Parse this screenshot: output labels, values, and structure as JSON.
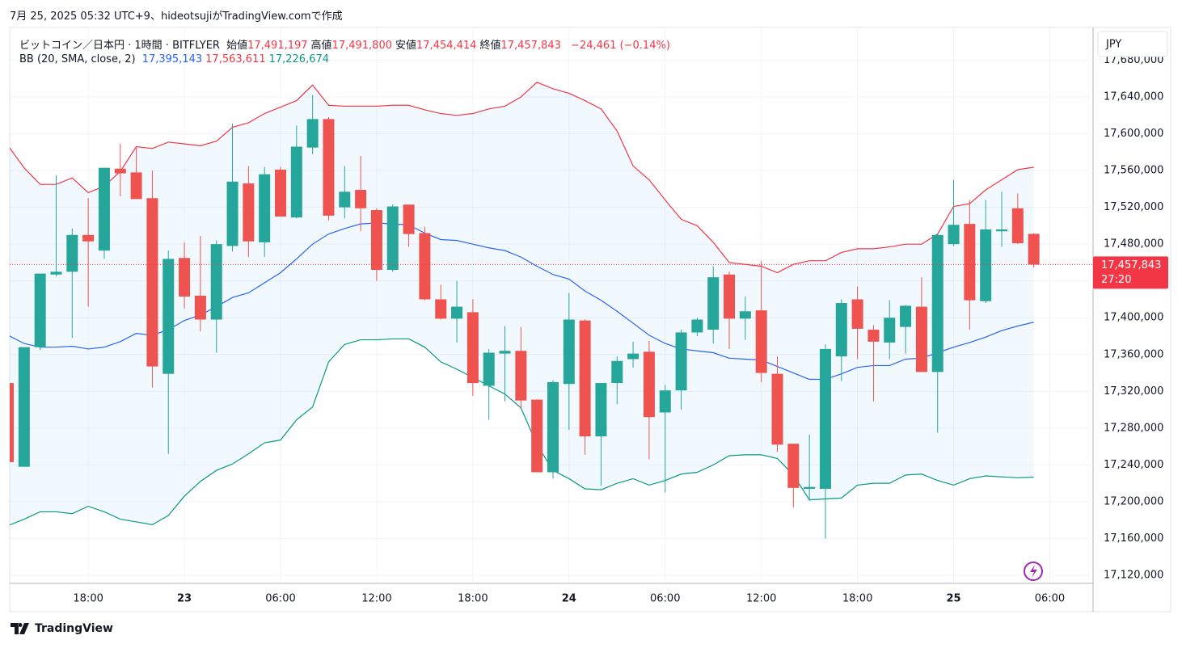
{
  "header": "7月 25, 2025 05:32 UTC+9、hideotsujiがTradingView.comで作成",
  "legend": {
    "symbol": "ビットコイン／日本円 · 1時間 · BITFLYER",
    "items": [
      {
        "label": "始値",
        "value": "17,491,197"
      },
      {
        "label": "高値",
        "value": "17,491,800"
      },
      {
        "label": "安値",
        "value": "17,454,414"
      },
      {
        "label": "終値",
        "value": "17,457,843"
      }
    ],
    "change": "−24,461 (−0.14%)"
  },
  "footer": "TradingView",
  "chart_data": {
    "type": "candlestick",
    "currency": "JPY",
    "last_price_label": "17,457,843",
    "countdown": "27:20",
    "xlim": [
      0.1,
      67.7
    ],
    "xticks": [
      {
        "value": 5,
        "label": "18:00"
      },
      {
        "value": 11,
        "label": "23"
      },
      {
        "value": 17,
        "label": "06:00"
      },
      {
        "value": 23,
        "label": "12:00"
      },
      {
        "value": 29,
        "label": "18:00"
      },
      {
        "value": 35,
        "label": "24"
      },
      {
        "value": 41,
        "label": "06:00"
      },
      {
        "value": 47,
        "label": "12:00"
      },
      {
        "value": 53,
        "label": "18:00"
      },
      {
        "value": 59,
        "label": "25"
      },
      {
        "value": 65,
        "label": "06:00"
      }
    ],
    "ylim": [
      17111200,
      17714700
    ],
    "yticks": [
      {
        "value": 17120000,
        "label": "17,120,000"
      },
      {
        "value": 17160000,
        "label": "17,160,000"
      },
      {
        "value": 17200000,
        "label": "17,200,000"
      },
      {
        "value": 17240000,
        "label": "17,240,000"
      },
      {
        "value": 17280000,
        "label": "17,280,000"
      },
      {
        "value": 17320000,
        "label": "17,320,000"
      },
      {
        "value": 17360000,
        "label": "17,360,000"
      },
      {
        "value": 17400000,
        "label": "17,400,000"
      },
      {
        "value": 17440000,
        "label": "17,440,000"
      },
      {
        "value": 17480000,
        "label": "17,480,000"
      },
      {
        "value": 17520000,
        "label": "17,520,000"
      },
      {
        "value": 17560000,
        "label": "17,560,000"
      },
      {
        "value": 17600000,
        "label": "17,600,000"
      },
      {
        "value": 17640000,
        "label": "17,640,000"
      },
      {
        "value": 17680000,
        "label": "17,680,000"
      }
    ],
    "grid": true,
    "up_color": "#26a69a",
    "down_color": "#ef5350",
    "open": [
      17329000,
      17238000,
      17368000,
      17447000,
      17450000,
      17490000,
      17473000,
      17562000,
      17558000,
      17530000,
      17339000,
      17465000,
      17424000,
      17398000,
      17478000,
      17546000,
      17482000,
      17561000,
      17509000,
      17585000,
      17616000,
      17520000,
      17539000,
      17517000,
      17452000,
      17523000,
      17492000,
      17420000,
      17399000,
      17406000,
      17326000,
      17361000,
      17364000,
      17311000,
      17232000,
      17328000,
      17397000,
      17271000,
      17329000,
      17355000,
      17363000,
      17297000,
      17321000,
      17384000,
      17387000,
      17447000,
      17399000,
      17408000,
      17339000,
      17263000,
      17214000,
      17214000,
      17358000,
      17420000,
      17387000,
      17373000,
      17390000,
      17412000,
      17341000,
      17480000,
      17502000,
      17418000,
      17494000,
      17519000,
      17491197
    ],
    "high": [
      17329000,
      17368000,
      17448000,
      17555000,
      17497000,
      17530000,
      17563000,
      17589000,
      17585000,
      17560000,
      17473000,
      17482000,
      17489000,
      17484000,
      17611000,
      17565000,
      17564000,
      17564000,
      17609000,
      17642000,
      17618000,
      17565000,
      17576000,
      17519000,
      17523000,
      17523000,
      17499000,
      17436000,
      17440000,
      17420000,
      17366000,
      17391000,
      17390000,
      17311000,
      17332000,
      17427000,
      17398000,
      17329000,
      17358000,
      17374000,
      17375000,
      17327000,
      17387000,
      17400000,
      17456000,
      17450000,
      17423000,
      17462000,
      17358000,
      17263000,
      17273000,
      17371000,
      17420000,
      17434000,
      17392000,
      17419000,
      17414000,
      17444000,
      17492000,
      17550000,
      17528000,
      17528000,
      17537000,
      17535000,
      17491800
    ],
    "low": [
      17243000,
      17238000,
      17365000,
      17445000,
      17378000,
      17412000,
      17464000,
      17532000,
      17529000,
      17324000,
      17252000,
      17410000,
      17385000,
      17362000,
      17472000,
      17466000,
      17466000,
      17510000,
      17508000,
      17578000,
      17506000,
      17508000,
      17494000,
      17440000,
      17450000,
      17477000,
      17419000,
      17398000,
      17373000,
      17315000,
      17289000,
      17309000,
      17301000,
      17232000,
      17225000,
      17278000,
      17251000,
      17217000,
      17306000,
      17346000,
      17246000,
      17210000,
      17300000,
      17380000,
      17372000,
      17366000,
      17376000,
      17330000,
      17254000,
      17194000,
      17201000,
      17160000,
      17331000,
      17355000,
      17309000,
      17355000,
      17361000,
      17341000,
      17275000,
      17478000,
      17387000,
      17416000,
      17477000,
      17480000,
      17454414
    ],
    "close": [
      17243000,
      17368000,
      17448000,
      17450000,
      17490000,
      17483000,
      17563000,
      17557000,
      17529000,
      17347000,
      17464000,
      17423000,
      17398000,
      17480000,
      17548000,
      17483000,
      17556000,
      17510000,
      17586000,
      17616000,
      17511000,
      17537000,
      17519000,
      17452000,
      17521000,
      17491000,
      17420000,
      17399000,
      17412000,
      17329000,
      17362000,
      17364000,
      17310000,
      17232000,
      17330000,
      17398000,
      17271000,
      17329000,
      17353000,
      17361000,
      17292000,
      17321000,
      17384000,
      17398000,
      17444000,
      17399000,
      17407000,
      17340000,
      17262000,
      17215000,
      17216000,
      17366000,
      17416000,
      17388000,
      17374000,
      17400000,
      17413000,
      17341000,
      17490000,
      17501000,
      17419000,
      17496000,
      17496000,
      17481000,
      17457843
    ],
    "bb": {
      "name": "BB (20, SMA, close, 2)",
      "fill": "rgba(33,150,243,0.06)",
      "lines": [
        {
          "color": "#2962ff",
          "legend_label": "17,395,143",
          "values": [
            17381000,
            17372000,
            17368000,
            17368000,
            17369000,
            17366000,
            17368000,
            17374000,
            17383000,
            17381000,
            17387000,
            17397000,
            17403000,
            17412000,
            17422000,
            17427000,
            17438000,
            17449000,
            17464000,
            17480000,
            17491000,
            17497000,
            17502000,
            17503000,
            17502000,
            17501000,
            17492000,
            17485000,
            17484000,
            17480000,
            17476000,
            17473000,
            17466000,
            17456000,
            17447000,
            17442000,
            17429000,
            17419000,
            17407000,
            17394000,
            17381000,
            17372000,
            17366000,
            17364000,
            17362000,
            17356000,
            17355000,
            17354000,
            17347000,
            17340000,
            17333000,
            17333000,
            17339000,
            17346000,
            17348000,
            17348000,
            17355000,
            17356000,
            17362000,
            17368000,
            17373000,
            17379000,
            17386000,
            17391000,
            17395143
          ]
        },
        {
          "color": "#f23645",
          "legend_label": "17,563,611",
          "values": [
            17587000,
            17563000,
            17545000,
            17545000,
            17552000,
            17536000,
            17543000,
            17559000,
            17586000,
            17584000,
            17591000,
            17589000,
            17587000,
            17592000,
            17607000,
            17612000,
            17622000,
            17629000,
            17636000,
            17653000,
            17631000,
            17630000,
            17630000,
            17630000,
            17631000,
            17631000,
            17626000,
            17622000,
            17620000,
            17622000,
            17627000,
            17630000,
            17640000,
            17656000,
            17649000,
            17644000,
            17636000,
            17627000,
            17603000,
            17565000,
            17550000,
            17528000,
            17507000,
            17500000,
            17482000,
            17460000,
            17458000,
            17456000,
            17449000,
            17458000,
            17462000,
            17462000,
            17471000,
            17475000,
            17475000,
            17477000,
            17480000,
            17480000,
            17491000,
            17521000,
            17524000,
            17539000,
            17550000,
            17561000,
            17563611
          ]
        },
        {
          "color": "#089981",
          "legend_label": "17,226,674",
          "values": [
            17174000,
            17181000,
            17189000,
            17189000,
            17187000,
            17195000,
            17189000,
            17181000,
            17178000,
            17175000,
            17185000,
            17206000,
            17222000,
            17234000,
            17241000,
            17252000,
            17264000,
            17267000,
            17289000,
            17303000,
            17352000,
            17371000,
            17376000,
            17376000,
            17377000,
            17377000,
            17368000,
            17352000,
            17344000,
            17335000,
            17326000,
            17317000,
            17302000,
            17262000,
            17234000,
            17225000,
            17214000,
            17213000,
            17220000,
            17225000,
            17218000,
            17223000,
            17230000,
            17232000,
            17240000,
            17250000,
            17251000,
            17251000,
            17247000,
            17229000,
            17202000,
            17203000,
            17204000,
            17218000,
            17220000,
            17220000,
            17229000,
            17230000,
            17223000,
            17218000,
            17225000,
            17228000,
            17227000,
            17226000,
            17226674
          ]
        }
      ]
    }
  }
}
